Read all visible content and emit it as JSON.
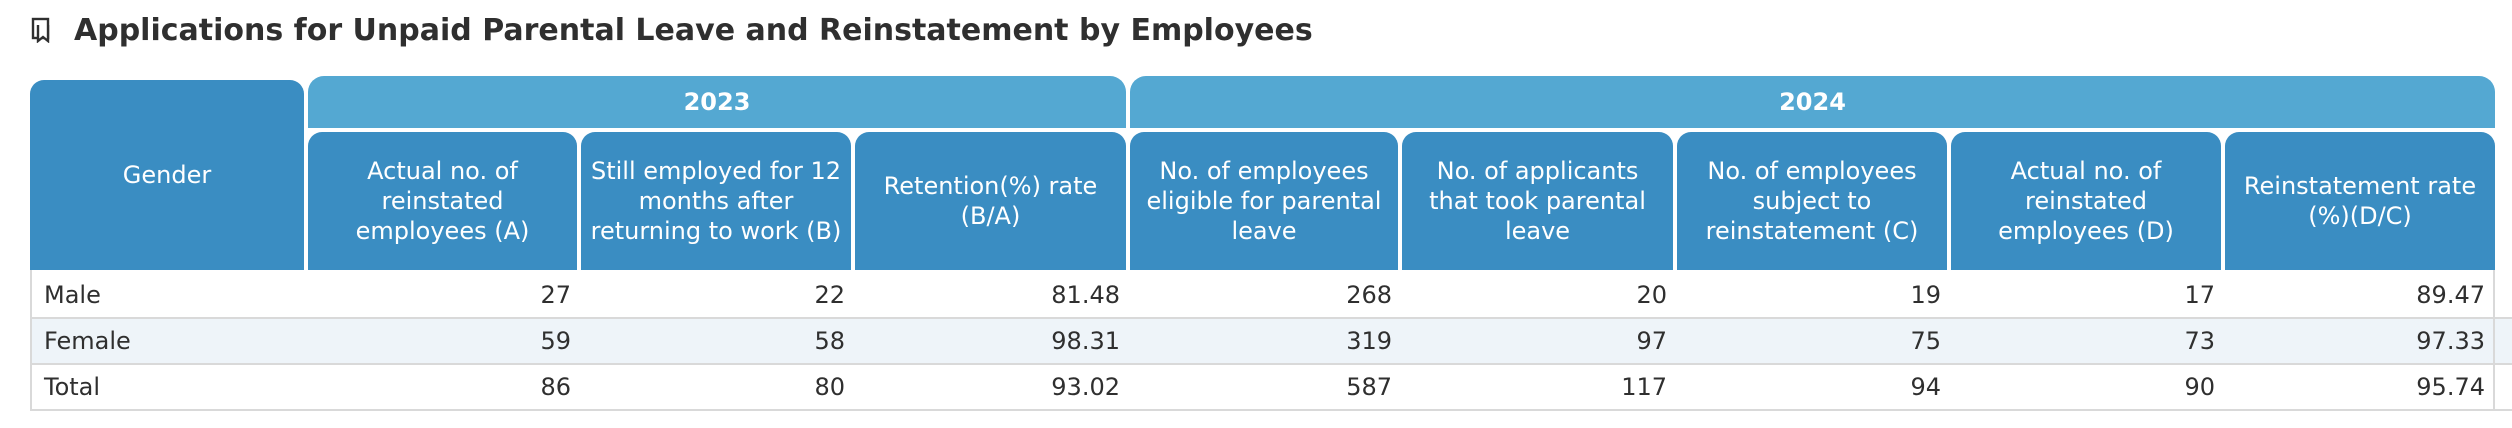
{
  "title": "Applications for Unpaid Parental Leave and Reinstatement by Employees",
  "icon": "bookmark-icon",
  "colors": {
    "header_dark": "#3a8dc2",
    "header_light": "#54a8d2",
    "row_alt": "#eef4f9"
  },
  "headers": {
    "gender": "Gender",
    "years": [
      "2023",
      "2024"
    ],
    "columns": [
      "Actual no. of reinstated employees (A)",
      "Still employed for 12 months after returning to work (B)",
      "Retention(%) rate (B/A)",
      "No. of employees eligible for parental leave",
      "No. of applicants that took parental leave",
      "No. of employees subject to reinstatement (C)",
      "Actual no. of reinstated employees (D)",
      "Reinstatement rate (%)(D/C)"
    ]
  },
  "rows": [
    {
      "label": "Male",
      "values": [
        "27",
        "22",
        "81.48",
        "268",
        "20",
        "19",
        "17",
        "89.47"
      ]
    },
    {
      "label": "Female",
      "values": [
        "59",
        "58",
        "98.31",
        "319",
        "97",
        "75",
        "73",
        "97.33"
      ]
    },
    {
      "label": "Total",
      "values": [
        "86",
        "80",
        "93.02",
        "587",
        "117",
        "94",
        "90",
        "95.74"
      ]
    }
  ]
}
